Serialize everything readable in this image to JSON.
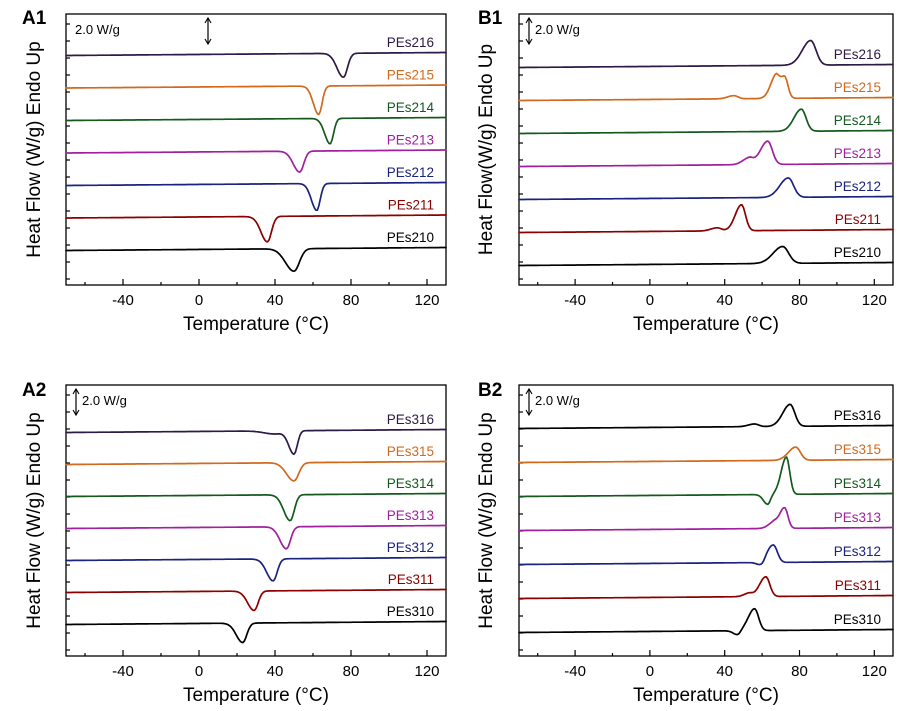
{
  "colors": {
    "black": "#000000",
    "orange": "#d2691e",
    "green": "#145a1e",
    "magenta": "#a020a0",
    "navy": "#1a237e",
    "darkred": "#8b0000"
  },
  "chart_data": [
    {
      "panel": "A1",
      "type": "line",
      "xlabel": "Temperature (°C)",
      "ylabel": "Heat Flow (W/g) Endo Up",
      "xlim": [
        -70,
        130
      ],
      "xticks": [
        -40,
        0,
        40,
        80,
        120
      ],
      "scale_bar": "2.0 W/g",
      "series": [
        {
          "name": "PEs216",
          "color": "purple",
          "baseline_order": 0,
          "peaks": [
            {
              "center": 76,
              "amplitude": -0.8,
              "width": 3
            }
          ]
        },
        {
          "name": "PEs215",
          "color": "orange",
          "baseline_order": 1,
          "peaks": [
            {
              "center": 63,
              "amplitude": -0.95,
              "width": 2.5
            }
          ]
        },
        {
          "name": "PEs214",
          "color": "green",
          "baseline_order": 2,
          "peaks": [
            {
              "center": 69,
              "amplitude": -0.85,
              "width": 2.5
            }
          ]
        },
        {
          "name": "PEs213",
          "color": "magenta",
          "baseline_order": 3,
          "peaks": [
            {
              "center": 53,
              "amplitude": -0.7,
              "width": 3
            }
          ]
        },
        {
          "name": "PEs212",
          "color": "navy",
          "baseline_order": 4,
          "peaks": [
            {
              "center": 62,
              "amplitude": -0.9,
              "width": 2.5
            }
          ]
        },
        {
          "name": "PEs211",
          "color": "darkred",
          "baseline_order": 5,
          "peaks": [
            {
              "center": 36,
              "amplitude": -0.85,
              "width": 3
            }
          ]
        },
        {
          "name": "PEs210",
          "color": "black",
          "baseline_order": 6,
          "peaks": [
            {
              "center": 50,
              "amplitude": -0.75,
              "width": 4
            }
          ]
        }
      ]
    },
    {
      "panel": "B1",
      "type": "line",
      "xlabel": "Temperature (°C)",
      "ylabel": "Heat Flow(W/g) Endo Up",
      "xlim": [
        -70,
        130
      ],
      "xticks": [
        -40,
        0,
        40,
        80,
        120
      ],
      "scale_bar": "2.0 W/g",
      "series": [
        {
          "name": "PEs216",
          "color": "purple",
          "baseline_order": 0,
          "peaks": [
            {
              "center": 86,
              "amplitude": 0.95,
              "width": 4
            }
          ]
        },
        {
          "name": "PEs215",
          "color": "orange",
          "baseline_order": 1,
          "peaks": [
            {
              "center": 67,
              "amplitude": 0.75,
              "width": 2.5
            },
            {
              "center": 72,
              "amplitude": 0.85,
              "width": 2.5
            },
            {
              "center": 45,
              "amplitude": 0.12,
              "width": 3
            }
          ]
        },
        {
          "name": "PEs214",
          "color": "green",
          "baseline_order": 2,
          "peaks": [
            {
              "center": 81,
              "amplitude": 0.85,
              "width": 3.5
            }
          ]
        },
        {
          "name": "PEs213",
          "color": "magenta",
          "baseline_order": 3,
          "peaks": [
            {
              "center": 53,
              "amplitude": 0.25,
              "width": 3
            },
            {
              "center": 63,
              "amplitude": 0.9,
              "width": 3.5
            }
          ]
        },
        {
          "name": "PEs212",
          "color": "navy",
          "baseline_order": 4,
          "peaks": [
            {
              "center": 74,
              "amplitude": 0.75,
              "width": 4
            }
          ]
        },
        {
          "name": "PEs211",
          "color": "darkred",
          "baseline_order": 5,
          "peaks": [
            {
              "center": 49,
              "amplitude": 1.0,
              "width": 3
            },
            {
              "center": 36,
              "amplitude": 0.12,
              "width": 3
            }
          ]
        },
        {
          "name": "PEs210",
          "color": "black",
          "baseline_order": 6,
          "peaks": [
            {
              "center": 71,
              "amplitude": 0.65,
              "width": 4.5
            }
          ]
        }
      ]
    },
    {
      "panel": "A2",
      "type": "line",
      "xlabel": "Temperature (°C)",
      "ylabel": "Heat Flow (W/g) Endo Up",
      "xlim": [
        -70,
        130
      ],
      "xticks": [
        -40,
        0,
        40,
        80,
        120
      ],
      "scale_bar": "2.0 W/g",
      "series": [
        {
          "name": "PEs316",
          "color": "purple",
          "baseline_order": 0,
          "peaks": [
            {
              "center": 50,
              "amplitude": -0.9,
              "width": 2.5
            },
            {
              "center": 40,
              "amplitude": -0.12,
              "width": 5
            }
          ]
        },
        {
          "name": "PEs315",
          "color": "orange",
          "baseline_order": 1,
          "peaks": [
            {
              "center": 50,
              "amplitude": -0.7,
              "width": 3.5
            }
          ]
        },
        {
          "name": "PEs314",
          "color": "green",
          "baseline_order": 2,
          "peaks": [
            {
              "center": 48,
              "amplitude": -1.0,
              "width": 3
            }
          ]
        },
        {
          "name": "PEs313",
          "color": "magenta",
          "baseline_order": 3,
          "peaks": [
            {
              "center": 46,
              "amplitude": -0.85,
              "width": 3
            }
          ]
        },
        {
          "name": "PEs312",
          "color": "navy",
          "baseline_order": 4,
          "peaks": [
            {
              "center": 39,
              "amplitude": -0.85,
              "width": 3
            }
          ]
        },
        {
          "name": "PEs311",
          "color": "darkred",
          "baseline_order": 5,
          "peaks": [
            {
              "center": 29,
              "amplitude": -0.75,
              "width": 3
            }
          ]
        },
        {
          "name": "PEs310",
          "color": "black",
          "baseline_order": 6,
          "peaks": [
            {
              "center": 23,
              "amplitude": -0.75,
              "width": 3
            }
          ]
        }
      ]
    },
    {
      "panel": "B2",
      "type": "line",
      "xlabel": "Temperature (°C)",
      "ylabel": "Heat Flow (W/g) Endo Up",
      "xlim": [
        -70,
        130
      ],
      "xticks": [
        -40,
        0,
        40,
        80,
        120
      ],
      "scale_bar": "2.0 W/g",
      "series": [
        {
          "name": "PEs316",
          "color": "black",
          "baseline_order": 0,
          "peaks": [
            {
              "center": 75,
              "amplitude": 1.0,
              "width": 3.5
            },
            {
              "center": 56,
              "amplitude": 0.12,
              "width": 3
            }
          ]
        },
        {
          "name": "PEs315",
          "color": "orange",
          "baseline_order": 1,
          "peaks": [
            {
              "center": 78,
              "amplitude": 0.6,
              "width": 3.5
            }
          ]
        },
        {
          "name": "PEs314",
          "color": "green",
          "baseline_order": 2,
          "peaks": [
            {
              "center": 63,
              "amplitude": -0.45,
              "width": 2
            },
            {
              "center": 73,
              "amplitude": 1.7,
              "width": 2.5
            }
          ]
        },
        {
          "name": "PEs313",
          "color": "magenta",
          "baseline_order": 3,
          "peaks": [
            {
              "center": 66,
              "amplitude": 0.25,
              "width": 2.5
            },
            {
              "center": 72,
              "amplitude": 0.95,
              "width": 2.5
            }
          ]
        },
        {
          "name": "PEs312",
          "color": "navy",
          "baseline_order": 4,
          "peaks": [
            {
              "center": 60,
              "amplitude": -0.2,
              "width": 2
            },
            {
              "center": 66,
              "amplitude": 0.8,
              "width": 3
            }
          ]
        },
        {
          "name": "PEs311",
          "color": "darkred",
          "baseline_order": 5,
          "peaks": [
            {
              "center": 62,
              "amplitude": 0.9,
              "width": 3
            },
            {
              "center": 53,
              "amplitude": 0.15,
              "width": 2.5
            }
          ]
        },
        {
          "name": "PEs310",
          "color": "black",
          "baseline_order": 6,
          "peaks": [
            {
              "center": 47,
              "amplitude": -0.2,
              "width": 2
            },
            {
              "center": 56,
              "amplitude": 1.0,
              "width": 3
            }
          ]
        }
      ]
    }
  ]
}
